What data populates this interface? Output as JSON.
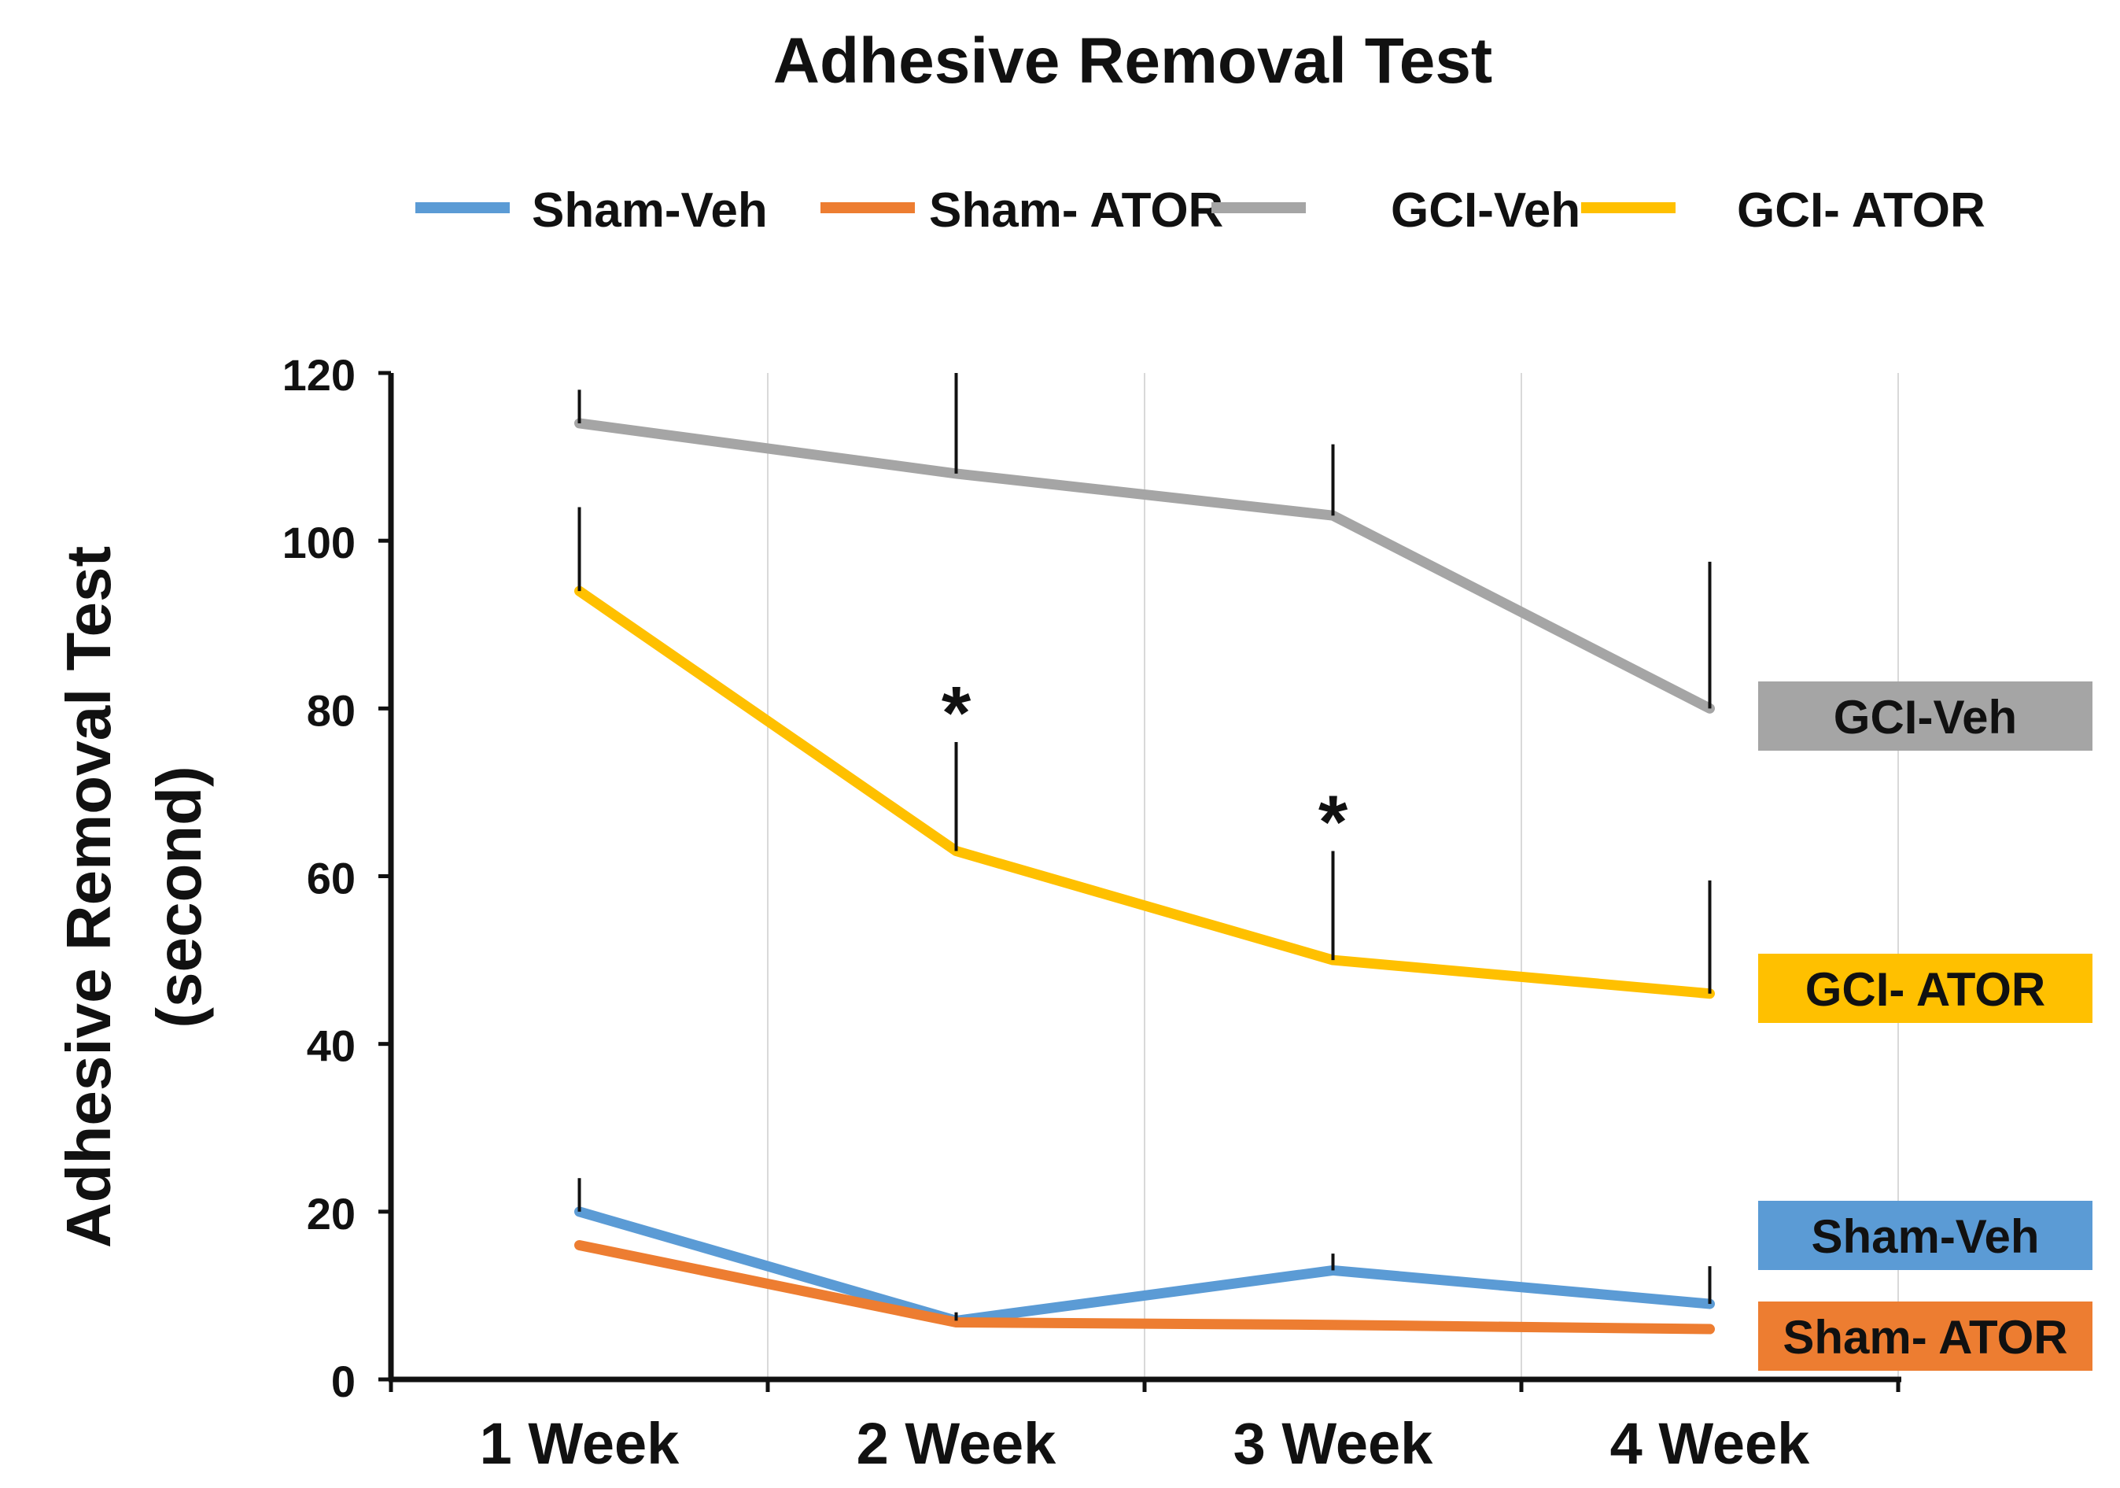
{
  "chart_data": {
    "type": "line",
    "title": "Adhesive Removal Test",
    "ylabel_line1": "Adhesive Removal Test",
    "ylabel_line2": "(second)",
    "xlabel": "",
    "categories": [
      "1 Week",
      "2 Week",
      "3 Week",
      "4 Week"
    ],
    "ylim": [
      0,
      120
    ],
    "yticks": [
      0,
      20,
      40,
      60,
      80,
      100,
      120
    ],
    "grid": "vertical",
    "legend_position": "top",
    "series": [
      {
        "name": "Sham-Veh",
        "color": "#5b9bd5",
        "values": [
          20,
          7,
          13,
          9
        ],
        "errors": [
          4,
          1,
          2,
          4.5
        ],
        "end_label": "Sham-Veh"
      },
      {
        "name": "Sham- ATOR",
        "color": "#ed7d31",
        "values": [
          16,
          6.8,
          6.5,
          6
        ],
        "errors": [
          0,
          0,
          0,
          0
        ],
        "end_label": "Sham- ATOR"
      },
      {
        "name": "GCI-Veh",
        "color": "#a5a5a5",
        "values": [
          114,
          108,
          103,
          80
        ],
        "errors": [
          4,
          12,
          8.5,
          17.5
        ],
        "end_label": "GCI-Veh"
      },
      {
        "name": "GCI- ATOR",
        "color": "#ffc000",
        "values": [
          94,
          63,
          50,
          46
        ],
        "errors": [
          10,
          13,
          13,
          13.5
        ],
        "end_label": "GCI- ATOR"
      }
    ],
    "annotations": [
      {
        "text": "*",
        "category": "2 Week",
        "series": "GCI- ATOR"
      },
      {
        "text": "*",
        "category": "3 Week",
        "series": "GCI- ATOR"
      }
    ]
  }
}
